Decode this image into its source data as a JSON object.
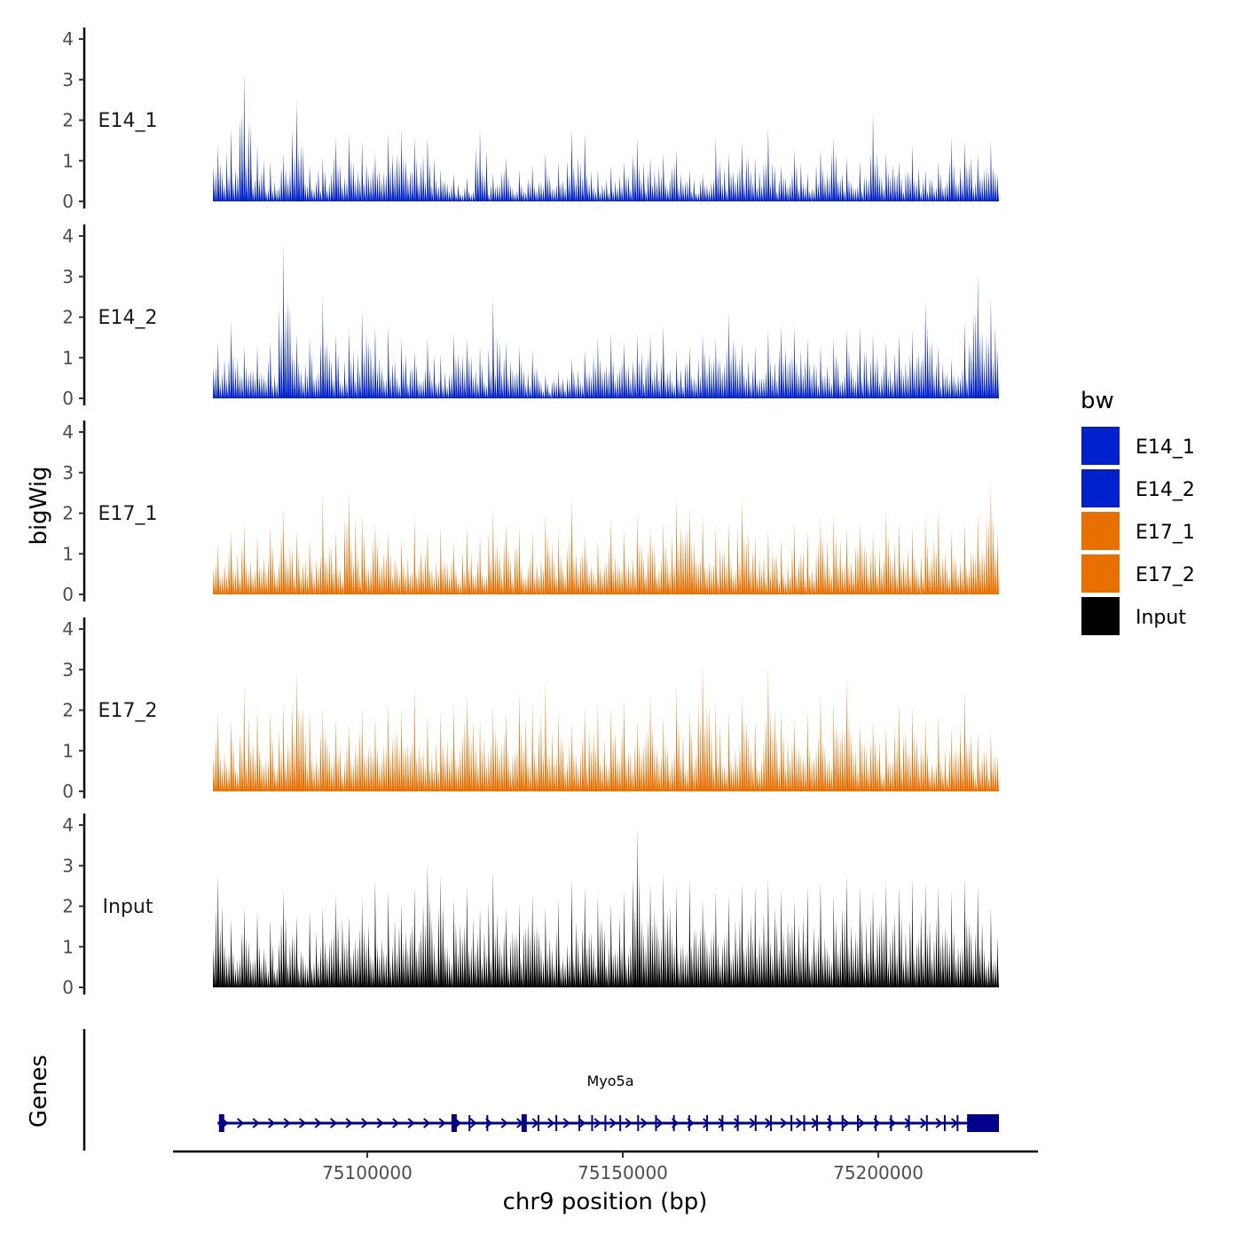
{
  "chart_data": {
    "type": "area",
    "title": "",
    "xlabel": "chr9 position (bp)",
    "ylabel": "bigWig",
    "gene_panel_label": "Genes",
    "xlim": [
      75069800,
      75223600
    ],
    "xticks": [
      75100000,
      75150000,
      75200000
    ],
    "xtick_labels": [
      "75100000",
      "75150000",
      "75200000"
    ],
    "ylim": [
      0,
      4
    ],
    "yticks": [
      0,
      1,
      2,
      3,
      4
    ],
    "ytick_labels": [
      "0",
      "1",
      "2",
      "3",
      "4"
    ],
    "legend": {
      "title": "bw",
      "position": "right",
      "entries": [
        "E14_1",
        "E14_2",
        "E17_1",
        "E17_2",
        "Input"
      ]
    },
    "series": [
      {
        "name": "E14_1",
        "color": "#0022CC",
        "values": [
          1.4,
          1.8,
          3.2,
          1.4,
          1.0,
          1.2,
          2.5,
          0.9,
          1.1,
          1.6,
          1.7,
          1.5,
          1.2,
          1.7,
          1.8,
          1.6,
          1.6,
          0.8,
          0.7,
          0.6,
          1.8,
          0.7,
          1.1,
          0.8,
          0.9,
          1.2,
          1.0,
          1.8,
          1.7,
          0.8,
          0.9,
          1.0,
          1.6,
          1.1,
          1.2,
          1.3,
          0.8,
          0.7,
          1.6,
          1.2,
          1.5,
          1.1,
          1.8,
          0.9,
          1.3,
          0.7,
          1.3,
          1.6,
          1.1,
          1.0,
          2.2,
          1.2,
          1.0,
          1.4,
          0.8,
          1.0,
          1.6,
          1.5,
          1.2,
          1.5
        ]
      },
      {
        "name": "E14_2",
        "color": "#0022CC",
        "values": [
          1.4,
          1.9,
          1.3,
          1.3,
          1.4,
          3.8,
          1.6,
          1.5,
          2.5,
          1.6,
          1.7,
          2.2,
          1.8,
          1.8,
          1.5,
          1.2,
          1.5,
          1.1,
          1.6,
          1.5,
          1.3,
          2.5,
          1.4,
          1.3,
          1.2,
          0.6,
          0.7,
          1.0,
          1.2,
          1.5,
          1.6,
          1.4,
          1.6,
          1.6,
          1.8,
          1.2,
          1.3,
          1.6,
          1.5,
          2.1,
          1.4,
          1.3,
          1.7,
          1.8,
          1.8,
          1.5,
          1.3,
          1.5,
          1.7,
          1.8,
          1.6,
          1.4,
          1.6,
          1.7,
          2.4,
          1.3,
          1.0,
          1.9,
          3.1,
          2.5
        ]
      },
      {
        "name": "E17_1",
        "color": "#E87000",
        "values": [
          1.3,
          1.6,
          1.8,
          1.5,
          1.7,
          2.2,
          1.6,
          1.4,
          2.5,
          1.6,
          2.6,
          2.0,
          1.8,
          1.6,
          1.4,
          1.9,
          1.6,
          1.7,
          1.3,
          1.7,
          1.5,
          2.1,
          1.8,
          1.7,
          1.6,
          2.0,
          1.6,
          2.4,
          1.5,
          1.4,
          1.9,
          1.6,
          2.0,
          1.7,
          1.8,
          2.4,
          2.2,
          2.0,
          1.7,
          1.8,
          2.4,
          1.5,
          1.6,
          1.4,
          1.8,
          1.6,
          1.9,
          2.0,
          1.7,
          1.8,
          1.6,
          2.1,
          1.8,
          1.7,
          1.9,
          2.1,
          1.6,
          1.8,
          2.0,
          2.8
        ]
      },
      {
        "name": "E17_2",
        "color": "#E87000",
        "values": [
          2.0,
          1.8,
          2.6,
          2.1,
          2.0,
          2.2,
          3.0,
          2.0,
          2.1,
          1.8,
          1.7,
          2.1,
          1.9,
          2.2,
          2.1,
          2.6,
          1.9,
          2.0,
          2.2,
          2.4,
          1.8,
          2.1,
          2.0,
          2.5,
          2.2,
          2.7,
          2.0,
          1.7,
          2.1,
          2.2,
          2.1,
          2.3,
          1.8,
          2.4,
          1.9,
          2.6,
          2.0,
          3.2,
          2.2,
          2.0,
          2.4,
          1.8,
          3.1,
          2.0,
          1.8,
          2.0,
          2.4,
          2.3,
          2.8,
          1.7,
          1.8,
          1.6,
          2.2,
          2.1,
          1.8,
          1.9,
          1.6,
          2.5,
          1.5,
          1.5
        ]
      },
      {
        "name": "Input",
        "color": "#000000",
        "values": [
          2.8,
          1.7,
          2.0,
          1.9,
          1.7,
          2.4,
          1.8,
          1.9,
          2.0,
          2.3,
          1.8,
          2.2,
          2.7,
          2.4,
          2.1,
          2.5,
          3.1,
          2.8,
          2.2,
          2.5,
          2.0,
          2.9,
          2.0,
          2.1,
          2.3,
          2.0,
          2.2,
          2.7,
          2.5,
          2.3,
          2.1,
          2.4,
          4.0,
          2.6,
          2.8,
          2.5,
          2.7,
          2.2,
          2.4,
          2.3,
          2.6,
          2.5,
          2.7,
          2.4,
          2.2,
          2.5,
          2.6,
          2.3,
          2.8,
          2.5,
          2.4,
          2.6,
          2.5,
          2.7,
          2.6,
          2.5,
          2.4,
          2.7,
          2.5,
          2.0
        ]
      }
    ],
    "gene": {
      "name": "Myo5a",
      "strand": "+",
      "color": "#00008B",
      "start": 75070700,
      "end": 75223600,
      "large_exons": [
        75071500,
        75117000,
        75130700,
        75217900
      ],
      "utr_block": [
        75218000,
        75223600
      ],
      "small_exons": [
        75120000,
        75123500,
        75133500,
        75137000,
        75141500,
        75144000,
        75146600,
        75149500,
        75153000,
        75156500,
        75160000,
        75163000,
        75166500,
        75169500,
        75172500,
        75176000,
        75179000,
        75183000,
        75185500,
        75188000,
        75190500,
        75193000,
        75196000,
        75199500,
        75202500,
        75206000,
        75209500,
        75213000,
        75215500
      ]
    }
  }
}
